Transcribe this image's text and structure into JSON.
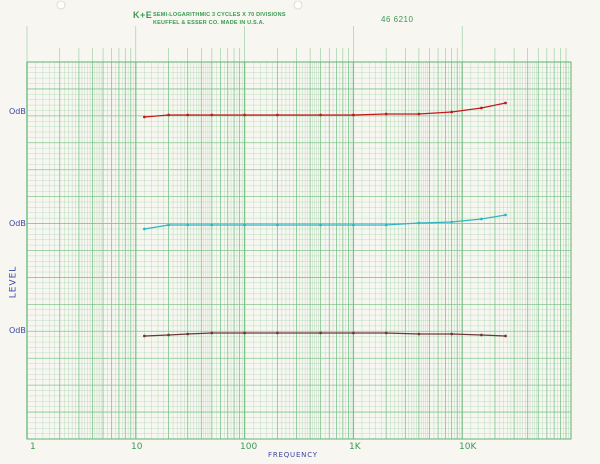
{
  "sheet": {
    "brand": "K+E",
    "line1": "SEMI-LOGARITHMIC 3 CYCLES X 70 DIVISIONS",
    "line2": "KEUFFEL & ESSER CO.  MADE IN U.S.A.",
    "catalog": "46 6210"
  },
  "colors": {
    "grid": "#76c286",
    "paper": "#f7f6f1",
    "red": "#c21a1a",
    "cyan": "#2fb6c2",
    "brown": "#6e3838"
  },
  "chart_data": {
    "type": "line",
    "x_scale": "log",
    "xlim": [
      1,
      100000
    ],
    "x_tick_labels": [
      "1",
      "10",
      "100",
      "1K",
      "10K"
    ],
    "x_tick_values": [
      1,
      10,
      100,
      1000,
      10000
    ],
    "xlabel": "FREQUENCY",
    "ylabel": "LEVEL",
    "y_level_labels": [
      "OdB",
      "OdB",
      "OdB"
    ],
    "grid": true,
    "series": [
      {
        "color": "#c21a1a",
        "zero": 0,
        "x": [
          12,
          20,
          30,
          50,
          100,
          200,
          500,
          1000,
          2000,
          4000,
          8000,
          15000,
          25000
        ],
        "y": [
          0,
          1,
          1,
          1,
          1,
          1,
          1,
          1,
          1.5,
          1.5,
          2.5,
          4.5,
          7
        ]
      },
      {
        "color": "#2fb6c2",
        "zero": 0,
        "x": [
          12,
          20,
          30,
          50,
          100,
          200,
          500,
          1000,
          2000,
          4000,
          8000,
          15000,
          25000
        ],
        "y": [
          -2,
          0,
          0,
          0,
          0,
          0,
          0,
          0,
          0,
          1,
          1.5,
          3,
          5
        ]
      },
      {
        "color": "#6e3838",
        "zero": 0,
        "x": [
          12,
          20,
          30,
          50,
          100,
          200,
          500,
          1000,
          2000,
          4000,
          8000,
          15000,
          25000
        ],
        "y": [
          -1,
          -0.5,
          0,
          0.5,
          0.5,
          0.5,
          0.5,
          0.5,
          0.5,
          0,
          0,
          -0.5,
          -1
        ]
      }
    ]
  }
}
